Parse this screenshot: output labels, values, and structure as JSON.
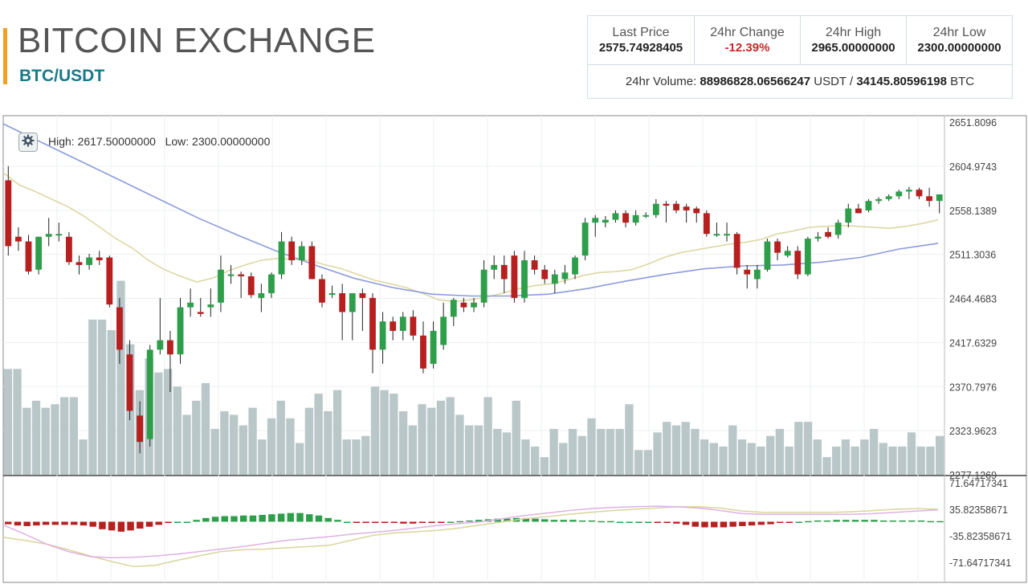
{
  "header": {
    "title": "BITCOIN EXCHANGE",
    "pair": "BTC/USDT"
  },
  "stats": {
    "last_price_label": "Last Price",
    "last_price": "2575.74928405",
    "change_label": "24hr Change",
    "change": "-12.39%",
    "high_label": "24hr High",
    "high": "2965.00000000",
    "low_label": "24hr Low",
    "low": "2300.00000000",
    "volume_label": "24hr Volume:",
    "volume_usdt": "88986828.06566247",
    "usdt_unit": "USDT",
    "separator": "/",
    "volume_btc": "34145.80596198",
    "btc_unit": "BTC"
  },
  "chart_info": {
    "high_label": "High:",
    "high": "2617.50000000",
    "low_label": "Low:",
    "low": "2300.00000000"
  },
  "colors": {
    "up": "#2e9e4a",
    "down": "#b81f1f",
    "volume": "#b9c7c9",
    "sma_short": "#ddd7a4",
    "sma_long": "#8c9bdc",
    "macd_line": "#e0b0e6",
    "signal_line": "#d9d59a",
    "accent": "#f0a020",
    "pair_color": "#1a7a8a",
    "change_color": "#c62828"
  },
  "chart_data": [
    {
      "type": "candlestick",
      "y_ticks": [
        "2651.8096",
        "2604.9743",
        "2558.1389",
        "2511.3036",
        "2464.4683",
        "2417.6329",
        "2370.7976",
        "2323.9623",
        "2277.1269"
      ],
      "ylim": [
        2277.1269,
        2651.8096
      ],
      "grid": true,
      "candles": [
        {
          "o": 2590,
          "h": 2605,
          "l": 2510,
          "c": 2520
        },
        {
          "o": 2530,
          "h": 2540,
          "l": 2515,
          "c": 2525
        },
        {
          "o": 2525,
          "h": 2532,
          "l": 2490,
          "c": 2493
        },
        {
          "o": 2495,
          "h": 2530,
          "l": 2490,
          "c": 2530
        },
        {
          "o": 2530,
          "h": 2550,
          "l": 2520,
          "c": 2533
        },
        {
          "o": 2533,
          "h": 2545,
          "l": 2525,
          "c": 2533
        },
        {
          "o": 2530,
          "h": 2535,
          "l": 2500,
          "c": 2503
        },
        {
          "o": 2503,
          "h": 2510,
          "l": 2490,
          "c": 2500
        },
        {
          "o": 2500,
          "h": 2512,
          "l": 2495,
          "c": 2508
        },
        {
          "o": 2508,
          "h": 2515,
          "l": 2500,
          "c": 2505
        },
        {
          "o": 2508,
          "h": 2510,
          "l": 2455,
          "c": 2458
        },
        {
          "o": 2455,
          "h": 2465,
          "l": 2395,
          "c": 2410
        },
        {
          "o": 2405,
          "h": 2420,
          "l": 2335,
          "c": 2345
        },
        {
          "o": 2340,
          "h": 2355,
          "l": 2300,
          "c": 2312
        },
        {
          "o": 2315,
          "h": 2415,
          "l": 2307,
          "c": 2410
        },
        {
          "o": 2410,
          "h": 2465,
          "l": 2405,
          "c": 2420
        },
        {
          "o": 2420,
          "h": 2430,
          "l": 2365,
          "c": 2405
        },
        {
          "o": 2405,
          "h": 2465,
          "l": 2395,
          "c": 2455
        },
        {
          "o": 2455,
          "h": 2475,
          "l": 2445,
          "c": 2460
        },
        {
          "o": 2450,
          "h": 2465,
          "l": 2445,
          "c": 2448
        },
        {
          "o": 2455,
          "h": 2475,
          "l": 2445,
          "c": 2458
        },
        {
          "o": 2460,
          "h": 2510,
          "l": 2450,
          "c": 2495
        },
        {
          "o": 2490,
          "h": 2500,
          "l": 2480,
          "c": 2490
        },
        {
          "o": 2490,
          "h": 2493,
          "l": 2465,
          "c": 2488
        },
        {
          "o": 2488,
          "h": 2492,
          "l": 2465,
          "c": 2468
        },
        {
          "o": 2465,
          "h": 2480,
          "l": 2450,
          "c": 2470
        },
        {
          "o": 2470,
          "h": 2492,
          "l": 2465,
          "c": 2490
        },
        {
          "o": 2490,
          "h": 2535,
          "l": 2485,
          "c": 2525
        },
        {
          "o": 2525,
          "h": 2530,
          "l": 2500,
          "c": 2505
        },
        {
          "o": 2505,
          "h": 2525,
          "l": 2500,
          "c": 2520
        },
        {
          "o": 2520,
          "h": 2525,
          "l": 2485,
          "c": 2485
        },
        {
          "o": 2485,
          "h": 2490,
          "l": 2455,
          "c": 2460
        },
        {
          "o": 2470,
          "h": 2478,
          "l": 2465,
          "c": 2470
        },
        {
          "o": 2470,
          "h": 2480,
          "l": 2420,
          "c": 2450
        },
        {
          "o": 2450,
          "h": 2470,
          "l": 2420,
          "c": 2470
        },
        {
          "o": 2470,
          "h": 2475,
          "l": 2430,
          "c": 2465
        },
        {
          "o": 2465,
          "h": 2470,
          "l": 2385,
          "c": 2410
        },
        {
          "o": 2410,
          "h": 2450,
          "l": 2395,
          "c": 2440
        },
        {
          "o": 2440,
          "h": 2445,
          "l": 2420,
          "c": 2430
        },
        {
          "o": 2430,
          "h": 2450,
          "l": 2420,
          "c": 2445
        },
        {
          "o": 2445,
          "h": 2452,
          "l": 2420,
          "c": 2425
        },
        {
          "o": 2425,
          "h": 2440,
          "l": 2385,
          "c": 2390
        },
        {
          "o": 2395,
          "h": 2440,
          "l": 2390,
          "c": 2430
        },
        {
          "o": 2415,
          "h": 2460,
          "l": 2410,
          "c": 2445
        },
        {
          "o": 2445,
          "h": 2465,
          "l": 2435,
          "c": 2463
        },
        {
          "o": 2460,
          "h": 2465,
          "l": 2450,
          "c": 2455
        },
        {
          "o": 2455,
          "h": 2465,
          "l": 2450,
          "c": 2460
        },
        {
          "o": 2460,
          "h": 2505,
          "l": 2455,
          "c": 2495
        },
        {
          "o": 2495,
          "h": 2510,
          "l": 2485,
          "c": 2500
        },
        {
          "o": 2500,
          "h": 2510,
          "l": 2470,
          "c": 2485
        },
        {
          "o": 2510,
          "h": 2515,
          "l": 2460,
          "c": 2465
        },
        {
          "o": 2465,
          "h": 2515,
          "l": 2460,
          "c": 2505
        },
        {
          "o": 2505,
          "h": 2510,
          "l": 2490,
          "c": 2495
        },
        {
          "o": 2495,
          "h": 2500,
          "l": 2480,
          "c": 2485
        },
        {
          "o": 2480,
          "h": 2495,
          "l": 2470,
          "c": 2490
        },
        {
          "o": 2485,
          "h": 2500,
          "l": 2480,
          "c": 2492
        },
        {
          "o": 2490,
          "h": 2510,
          "l": 2485,
          "c": 2508
        },
        {
          "o": 2510,
          "h": 2550,
          "l": 2505,
          "c": 2545
        },
        {
          "o": 2545,
          "h": 2553,
          "l": 2530,
          "c": 2550
        },
        {
          "o": 2545,
          "h": 2552,
          "l": 2540,
          "c": 2548
        },
        {
          "o": 2548,
          "h": 2558,
          "l": 2545,
          "c": 2555
        },
        {
          "o": 2555,
          "h": 2558,
          "l": 2540,
          "c": 2545
        },
        {
          "o": 2545,
          "h": 2558,
          "l": 2542,
          "c": 2553
        },
        {
          "o": 2553,
          "h": 2556,
          "l": 2550,
          "c": 2553
        },
        {
          "o": 2553,
          "h": 2570,
          "l": 2550,
          "c": 2565
        },
        {
          "o": 2565,
          "h": 2568,
          "l": 2545,
          "c": 2563
        },
        {
          "o": 2565,
          "h": 2568,
          "l": 2555,
          "c": 2558
        },
        {
          "o": 2562,
          "h": 2565,
          "l": 2545,
          "c": 2558
        },
        {
          "o": 2560,
          "h": 2562,
          "l": 2545,
          "c": 2555
        },
        {
          "o": 2555,
          "h": 2558,
          "l": 2530,
          "c": 2533
        },
        {
          "o": 2533,
          "h": 2545,
          "l": 2530,
          "c": 2533
        },
        {
          "o": 2533,
          "h": 2545,
          "l": 2525,
          "c": 2533
        },
        {
          "o": 2533,
          "h": 2535,
          "l": 2490,
          "c": 2497
        },
        {
          "o": 2495,
          "h": 2500,
          "l": 2475,
          "c": 2490
        },
        {
          "o": 2485,
          "h": 2500,
          "l": 2475,
          "c": 2495
        },
        {
          "o": 2495,
          "h": 2528,
          "l": 2493,
          "c": 2525
        },
        {
          "o": 2525,
          "h": 2528,
          "l": 2505,
          "c": 2513
        },
        {
          "o": 2510,
          "h": 2520,
          "l": 2508,
          "c": 2515
        },
        {
          "o": 2515,
          "h": 2520,
          "l": 2485,
          "c": 2490
        },
        {
          "o": 2490,
          "h": 2530,
          "l": 2488,
          "c": 2528
        },
        {
          "o": 2528,
          "h": 2535,
          "l": 2525,
          "c": 2530
        },
        {
          "o": 2535,
          "h": 2540,
          "l": 2528,
          "c": 2530
        },
        {
          "o": 2532,
          "h": 2548,
          "l": 2528,
          "c": 2545
        },
        {
          "o": 2545,
          "h": 2565,
          "l": 2540,
          "c": 2560
        },
        {
          "o": 2560,
          "h": 2565,
          "l": 2555,
          "c": 2555
        },
        {
          "o": 2558,
          "h": 2570,
          "l": 2556,
          "c": 2568
        },
        {
          "o": 2568,
          "h": 2572,
          "l": 2565,
          "c": 2570
        },
        {
          "o": 2570,
          "h": 2575,
          "l": 2568,
          "c": 2573
        },
        {
          "o": 2573,
          "h": 2580,
          "l": 2570,
          "c": 2578
        },
        {
          "o": 2578,
          "h": 2583,
          "l": 2570,
          "c": 2580
        },
        {
          "o": 2580,
          "h": 2582,
          "l": 2570,
          "c": 2573
        },
        {
          "o": 2573,
          "h": 2582,
          "l": 2562,
          "c": 2568
        },
        {
          "o": 2568,
          "h": 2575,
          "l": 2555,
          "c": 2575
        }
      ],
      "volume": [
        0.3,
        0.3,
        0.19,
        0.21,
        0.19,
        0.2,
        0.22,
        0.22,
        0.1,
        0.44,
        0.44,
        0.41,
        0.55,
        0.37,
        0.24,
        0.33,
        0.29,
        0.3,
        0.25,
        0.17,
        0.21,
        0.26,
        0.13,
        0.18,
        0.17,
        0.14,
        0.19,
        0.1,
        0.16,
        0.21,
        0.16,
        0.09,
        0.19,
        0.23,
        0.18,
        0.24,
        0.1,
        0.1,
        0.11,
        0.25,
        0.24,
        0.23,
        0.18,
        0.14,
        0.2,
        0.19,
        0.21,
        0.22,
        0.17,
        0.14,
        0.14,
        0.22,
        0.13,
        0.12,
        0.21,
        0.1,
        0.08,
        0.05,
        0.13,
        0.09,
        0.13,
        0.11,
        0.16,
        0.13,
        0.13,
        0.13,
        0.2,
        0.07,
        0.07,
        0.12,
        0.15,
        0.14,
        0.15,
        0.13,
        0.1,
        0.09,
        0.08,
        0.14,
        0.1,
        0.09,
        0.08,
        0.11,
        0.13,
        0.08,
        0.15,
        0.15,
        0.1,
        0.05,
        0.08,
        0.1,
        0.08,
        0.1,
        0.13,
        0.09,
        0.08,
        0.08,
        0.12,
        0.08,
        0.08,
        0.11
      ],
      "sma_short": [
        2598,
        2585,
        2578,
        2570,
        2562,
        2552,
        2540,
        2528,
        2518,
        2505,
        2495,
        2488,
        2482,
        2486,
        2494,
        2500,
        2505,
        2507,
        2506,
        2505,
        2500,
        2496,
        2490,
        2484,
        2480,
        2476,
        2470,
        2463,
        2461,
        2463,
        2466,
        2470,
        2475,
        2478,
        2480,
        2484,
        2489,
        2492,
        2493,
        2495,
        2501,
        2508,
        2513,
        2516,
        2519,
        2522,
        2524,
        2527,
        2533,
        2536,
        2540,
        2541,
        2542,
        2541,
        2540,
        2539,
        2541,
        2544,
        2548
      ],
      "sma_long": [
        2650,
        2630,
        2610,
        2590,
        2570,
        2550,
        2532,
        2515,
        2500,
        2486,
        2476,
        2469,
        2467,
        2467,
        2469,
        2475,
        2483,
        2490,
        2496,
        2499,
        2500,
        2503,
        2508,
        2517,
        2523
      ],
      "y_ticks_macd": [
        "71.64717341",
        "35.82358671",
        "-35.82358671",
        "-71.64717341"
      ],
      "macd_ylim": [
        -71.64717341,
        71.64717341
      ],
      "macd_hist": [
        -4,
        -6,
        -7,
        -6,
        -5,
        -5,
        -5,
        -5,
        -6,
        -8,
        -12,
        -14,
        -16,
        -14,
        -11,
        -8,
        -5,
        -2,
        0,
        0,
        3,
        6,
        8,
        9,
        9,
        10,
        10,
        11,
        12,
        13,
        14,
        14,
        12,
        10,
        6,
        3,
        0,
        -1,
        -2,
        -2,
        -2,
        -2,
        -3,
        -3,
        -2,
        -2,
        -1,
        0,
        1,
        2,
        3,
        4,
        5,
        5,
        6,
        6,
        5,
        4,
        3,
        3,
        3,
        2,
        2,
        1,
        1,
        0,
        0,
        0,
        0,
        -1,
        -2,
        -3,
        -5,
        -8,
        -9,
        -9,
        -9,
        -8,
        -7,
        -6,
        -5,
        -4,
        -2,
        -1,
        0,
        1,
        2,
        2,
        3,
        3,
        3,
        3,
        3,
        2,
        2,
        2,
        2,
        2,
        1,
        1
      ],
      "macd_line": [
        -5,
        -20,
        -36,
        -48,
        -56,
        -58,
        -57,
        -55,
        -52,
        -48,
        -44,
        -40,
        -35,
        -30,
        -27,
        -24,
        -20,
        -17,
        -14,
        -10,
        -6,
        -3,
        0,
        5,
        10,
        14,
        18,
        21,
        23,
        24,
        25,
        24,
        22,
        18,
        13,
        12,
        12,
        12,
        12,
        12,
        13,
        15,
        17,
        19
      ],
      "signal_line": [
        -25,
        -30,
        -36,
        -45,
        -55,
        -64,
        -72,
        -70,
        -62,
        -55,
        -48,
        -45,
        -44,
        -42,
        -40,
        -38,
        -30,
        -22,
        -18,
        -16,
        -14,
        -10,
        -5,
        0,
        5,
        8,
        12,
        15,
        18,
        20,
        22,
        24,
        24,
        22,
        17,
        15,
        15,
        15,
        15,
        16,
        18,
        20,
        21,
        20
      ]
    }
  ]
}
